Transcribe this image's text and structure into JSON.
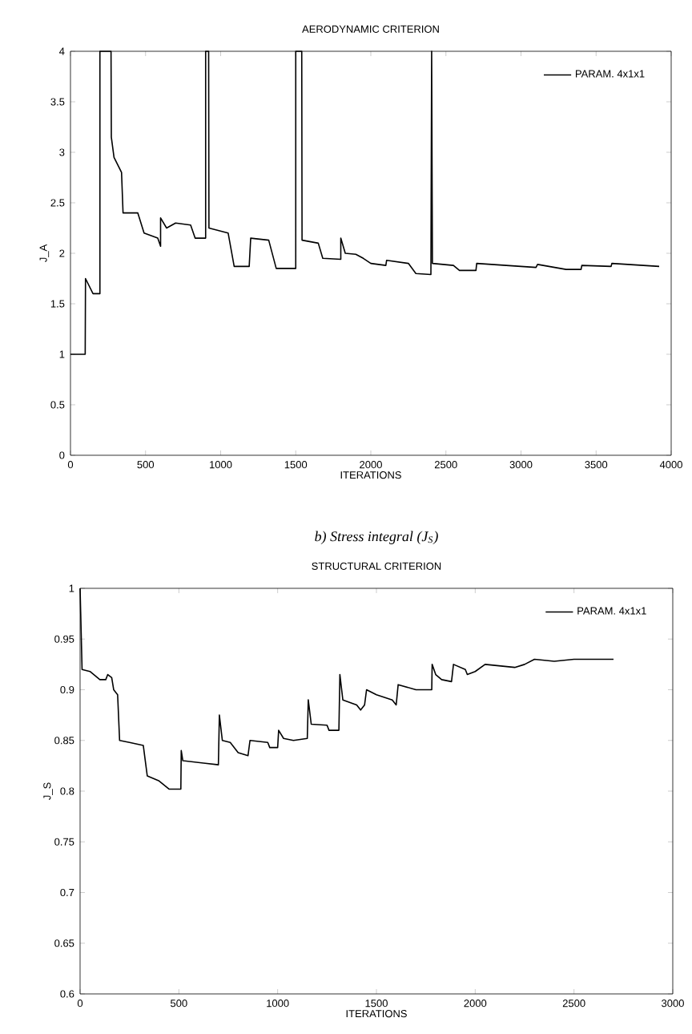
{
  "chart_data": [
    {
      "type": "line",
      "title": "AERODYNAMIC CRITERION",
      "xlabel": "ITERATIONS",
      "ylabel": "J_A",
      "xlim": [
        0,
        4000
      ],
      "ylim": [
        0,
        4
      ],
      "xticks": [
        0,
        500,
        1000,
        1500,
        2000,
        2500,
        3000,
        3500,
        4000
      ],
      "yticks": [
        0,
        0.5,
        1,
        1.5,
        2,
        2.5,
        3,
        3.5,
        4
      ],
      "legend": "top right",
      "grid": false,
      "marker": "none",
      "line_style": "solid",
      "series": [
        {
          "name": "PARAM. 4x1x1",
          "color": "#000000",
          "x": [
            0,
            98,
            100,
            150,
            196,
            196,
            270,
            272,
            290,
            340,
            350,
            448,
            490,
            581,
            600,
            600,
            640,
            700,
            800,
            830,
            900,
            900,
            920,
            922,
            1050,
            1090,
            1190,
            1200,
            1320,
            1370,
            1500,
            1500,
            1540,
            1542,
            1650,
            1680,
            1800,
            1800,
            1830,
            1900,
            1950,
            2000,
            2100,
            2105,
            2250,
            2300,
            2400,
            2405,
            2410,
            2550,
            2590,
            2700,
            2705,
            3000,
            3100,
            3110,
            3300,
            3400,
            3405,
            3600,
            3605,
            3920
          ],
          "values": [
            1.0,
            1.0,
            1.75,
            1.6,
            1.6,
            4,
            4,
            3.15,
            2.95,
            2.8,
            2.4,
            2.4,
            2.2,
            2.15,
            2.07,
            2.35,
            2.25,
            2.3,
            2.28,
            2.15,
            2.15,
            4,
            4,
            2.25,
            2.2,
            1.87,
            1.87,
            2.15,
            2.13,
            1.85,
            1.85,
            4,
            4,
            2.13,
            2.1,
            1.95,
            1.94,
            2.15,
            2.0,
            1.99,
            1.95,
            1.9,
            1.88,
            1.93,
            1.9,
            1.8,
            1.79,
            4,
            1.9,
            1.88,
            1.83,
            1.83,
            1.9,
            1.87,
            1.86,
            1.89,
            1.84,
            1.84,
            1.88,
            1.87,
            1.9,
            1.87
          ]
        }
      ]
    },
    {
      "type": "line",
      "title": "STRUCTURAL CRITERION",
      "annotations": [
        "b) Stress integral (J$_{S}$)"
      ],
      "xlabel": "ITERATIONS",
      "ylabel": "J_S",
      "xlim": [
        0,
        3000
      ],
      "ylim": [
        0.6,
        1
      ],
      "xticks": [
        0,
        500,
        1000,
        1500,
        2000,
        2500,
        3000
      ],
      "yticks": [
        0.6,
        0.65,
        0.7,
        0.75,
        0.8,
        0.85,
        0.9,
        0.95,
        1
      ],
      "legend": "top right",
      "grid": false,
      "marker": "none",
      "line_style": "solid",
      "series": [
        {
          "name": "PARAM. 4x1x1",
          "color": "#000000",
          "x": [
            0,
            10,
            50,
            100,
            130,
            140,
            160,
            170,
            190,
            200,
            250,
            320,
            330,
            340,
            400,
            450,
            510,
            512,
            520,
            700,
            705,
            720,
            760,
            800,
            850,
            860,
            950,
            960,
            1000,
            1005,
            1030,
            1080,
            1150,
            1155,
            1170,
            1250,
            1260,
            1310,
            1315,
            1330,
            1400,
            1420,
            1440,
            1450,
            1500,
            1580,
            1600,
            1610,
            1700,
            1780,
            1782,
            1800,
            1830,
            1880,
            1890,
            1950,
            1960,
            2000,
            2050,
            2200,
            2250,
            2300,
            2400,
            2500,
            2700
          ],
          "values": [
            1.0,
            0.92,
            0.918,
            0.91,
            0.91,
            0.915,
            0.912,
            0.9,
            0.895,
            0.85,
            0.848,
            0.845,
            0.83,
            0.815,
            0.81,
            0.802,
            0.802,
            0.84,
            0.83,
            0.826,
            0.875,
            0.85,
            0.848,
            0.838,
            0.835,
            0.85,
            0.848,
            0.843,
            0.843,
            0.86,
            0.852,
            0.85,
            0.852,
            0.89,
            0.866,
            0.865,
            0.86,
            0.86,
            0.915,
            0.89,
            0.885,
            0.88,
            0.885,
            0.9,
            0.895,
            0.89,
            0.885,
            0.905,
            0.9,
            0.9,
            0.925,
            0.915,
            0.91,
            0.908,
            0.925,
            0.92,
            0.915,
            0.918,
            0.925,
            0.922,
            0.925,
            0.93,
            0.928,
            0.93,
            0.93
          ]
        }
      ]
    }
  ]
}
